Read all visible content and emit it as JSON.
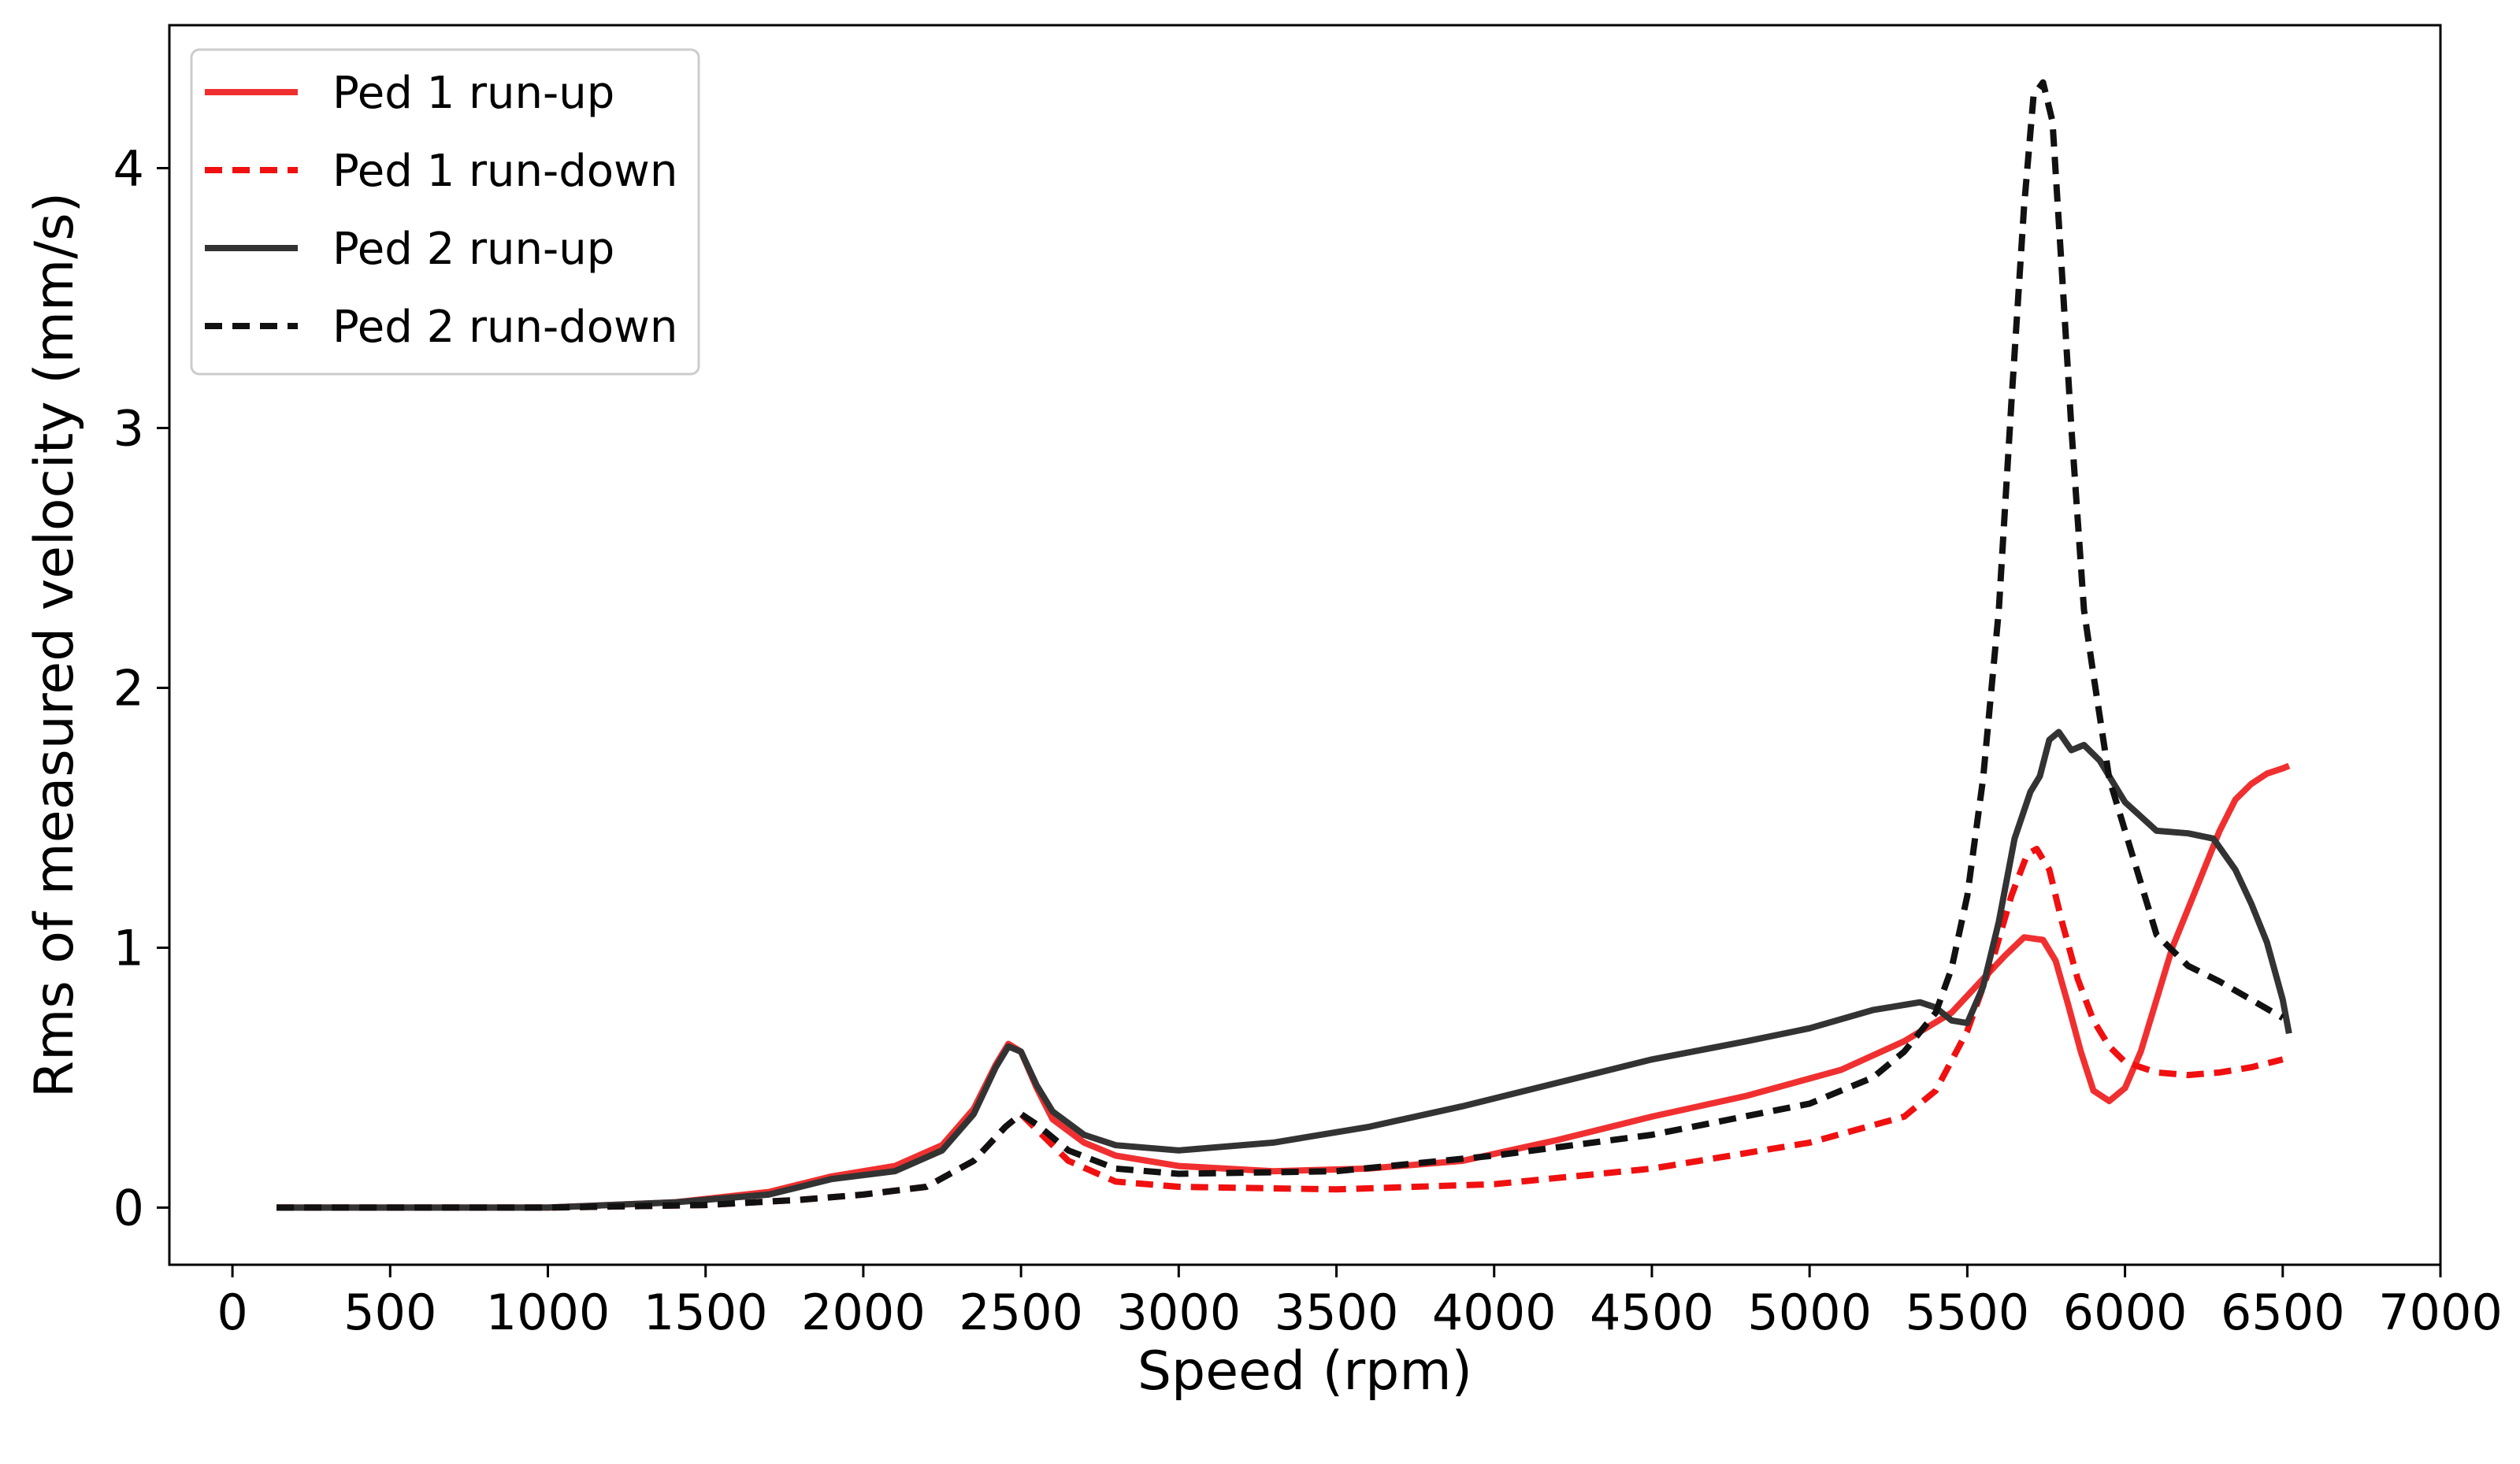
{
  "chart_data": {
    "type": "line",
    "title": "",
    "xlabel": "Speed (rpm)",
    "ylabel": "Rms of measured velocity (mm/s)",
    "xlim": [
      -200,
      7000
    ],
    "ylim": [
      -0.22,
      4.55
    ],
    "xticks": [
      0,
      500,
      1000,
      1500,
      2000,
      2500,
      3000,
      3500,
      4000,
      4500,
      5000,
      5500,
      6000,
      6500,
      7000
    ],
    "yticks": [
      0,
      1,
      2,
      3,
      4
    ],
    "grid": false,
    "legend_position": "top-left",
    "series": [
      {
        "name": "Ped 1 run-up",
        "color": "#f03030",
        "dash": "solid",
        "x": [
          140,
          500,
          1000,
          1400,
          1700,
          1900,
          2100,
          2250,
          2350,
          2420,
          2460,
          2500,
          2550,
          2600,
          2700,
          2800,
          3000,
          3300,
          3600,
          3900,
          4200,
          4500,
          4800,
          5100,
          5300,
          5450,
          5550,
          5620,
          5680,
          5740,
          5780,
          5820,
          5860,
          5900,
          5950,
          6000,
          6050,
          6100,
          6150,
          6200,
          6250,
          6300,
          6350,
          6400,
          6450,
          6500,
          6520
        ],
        "y": [
          0.0,
          0.0,
          0.0,
          0.02,
          0.06,
          0.12,
          0.16,
          0.24,
          0.38,
          0.55,
          0.63,
          0.6,
          0.46,
          0.34,
          0.25,
          0.2,
          0.16,
          0.14,
          0.15,
          0.18,
          0.26,
          0.35,
          0.43,
          0.53,
          0.64,
          0.75,
          0.88,
          0.97,
          1.04,
          1.03,
          0.95,
          0.78,
          0.6,
          0.45,
          0.41,
          0.46,
          0.6,
          0.8,
          1.0,
          1.15,
          1.3,
          1.45,
          1.57,
          1.63,
          1.67,
          1.69,
          1.7
        ]
      },
      {
        "name": "Ped 1 run-down",
        "color": "#f01010",
        "dash": "dashed",
        "x": [
          140,
          500,
          1000,
          1500,
          1800,
          2000,
          2200,
          2350,
          2450,
          2500,
          2550,
          2650,
          2800,
          3000,
          3500,
          4000,
          4500,
          5000,
          5300,
          5400,
          5500,
          5580,
          5640,
          5690,
          5720,
          5760,
          5800,
          5850,
          5900,
          5950,
          6000,
          6100,
          6200,
          6300,
          6400,
          6500
        ],
        "y": [
          0.0,
          0.0,
          0.0,
          0.01,
          0.03,
          0.05,
          0.08,
          0.18,
          0.31,
          0.36,
          0.3,
          0.18,
          0.1,
          0.08,
          0.07,
          0.09,
          0.15,
          0.25,
          0.35,
          0.45,
          0.68,
          0.95,
          1.2,
          1.36,
          1.38,
          1.3,
          1.1,
          0.88,
          0.72,
          0.62,
          0.56,
          0.52,
          0.51,
          0.52,
          0.54,
          0.57
        ]
      },
      {
        "name": "Ped 2 run-up",
        "color": "#333333",
        "dash": "solid",
        "x": [
          140,
          500,
          1000,
          1400,
          1700,
          1900,
          2100,
          2250,
          2350,
          2420,
          2460,
          2500,
          2550,
          2600,
          2700,
          2800,
          3000,
          3300,
          3600,
          3900,
          4200,
          4500,
          4800,
          5000,
          5200,
          5300,
          5350,
          5400,
          5450,
          5500,
          5550,
          5600,
          5650,
          5700,
          5730,
          5760,
          5790,
          5830,
          5870,
          5920,
          6000,
          6100,
          6200,
          6280,
          6350,
          6400,
          6450,
          6500,
          6520
        ],
        "y": [
          0.0,
          0.0,
          0.0,
          0.02,
          0.05,
          0.11,
          0.14,
          0.22,
          0.36,
          0.54,
          0.62,
          0.6,
          0.47,
          0.37,
          0.28,
          0.24,
          0.22,
          0.25,
          0.31,
          0.39,
          0.48,
          0.57,
          0.64,
          0.69,
          0.76,
          0.78,
          0.79,
          0.77,
          0.72,
          0.71,
          0.85,
          1.1,
          1.42,
          1.6,
          1.66,
          1.8,
          1.83,
          1.76,
          1.78,
          1.72,
          1.56,
          1.45,
          1.44,
          1.42,
          1.3,
          1.17,
          1.02,
          0.8,
          0.67
        ]
      },
      {
        "name": "Ped 2 run-down",
        "color": "#111111",
        "dash": "dashed",
        "x": [
          140,
          500,
          1000,
          1500,
          1800,
          2000,
          2200,
          2350,
          2450,
          2500,
          2550,
          2650,
          2800,
          3000,
          3500,
          4000,
          4500,
          5000,
          5200,
          5300,
          5400,
          5450,
          5500,
          5550,
          5600,
          5640,
          5680,
          5710,
          5740,
          5770,
          5800,
          5830,
          5870,
          5900,
          5950,
          6000,
          6100,
          6200,
          6300,
          6400,
          6500
        ],
        "y": [
          0.0,
          0.0,
          0.0,
          0.01,
          0.03,
          0.05,
          0.08,
          0.18,
          0.31,
          0.36,
          0.32,
          0.22,
          0.15,
          0.13,
          0.14,
          0.2,
          0.28,
          0.4,
          0.5,
          0.6,
          0.75,
          0.92,
          1.2,
          1.65,
          2.3,
          3.1,
          3.85,
          4.28,
          4.33,
          4.18,
          3.6,
          3.0,
          2.3,
          2.05,
          1.65,
          1.45,
          1.05,
          0.93,
          0.87,
          0.8,
          0.73
        ]
      }
    ]
  }
}
